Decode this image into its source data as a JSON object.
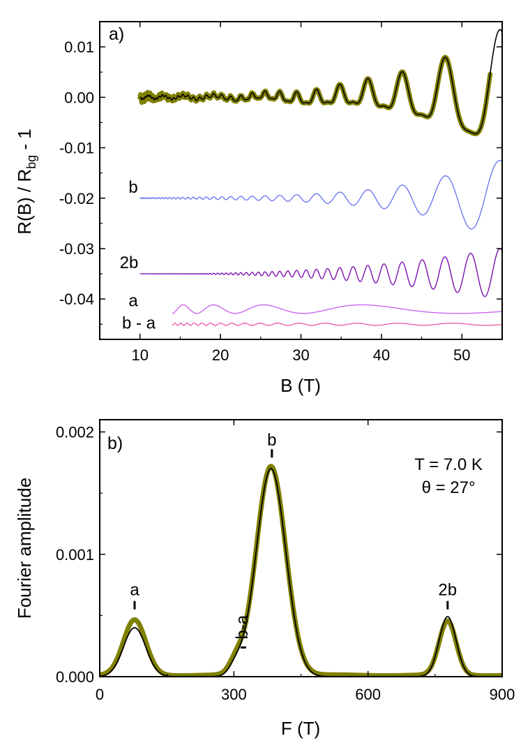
{
  "chart_data": [
    {
      "type": "line",
      "panel_label": "a)",
      "xlabel": "B (T)",
      "ylabel_main": "R(B) / R",
      "ylabel_sub": "bg",
      "ylabel_tail": " - 1",
      "xlim": [
        5,
        55
      ],
      "ylim": [
        -0.048,
        0.015
      ],
      "x_ticks": [
        10,
        20,
        30,
        40,
        50
      ],
      "x_tick_labels": [
        "10",
        "20",
        "30",
        "40",
        "50"
      ],
      "y_ticks": [
        0.01,
        0.0,
        -0.01,
        -0.02,
        -0.03,
        -0.04
      ],
      "y_tick_labels": [
        "0.01",
        "0.00",
        "-0.01",
        "-0.02",
        "-0.03",
        "-0.04"
      ],
      "series": [
        {
          "name": "data",
          "label": "",
          "color": "#808000",
          "style": "markers",
          "offset": 0.0,
          "x_range": [
            10,
            53.5
          ]
        },
        {
          "name": "fit",
          "label": "",
          "color": "#000000",
          "style": "line",
          "offset": 0.0,
          "x_range": [
            10,
            55
          ]
        },
        {
          "name": "b",
          "label": "b",
          "color": "#6b78ef",
          "style": "line",
          "offset": -0.02,
          "x_range": [
            10,
            55
          ]
        },
        {
          "name": "2b",
          "label": "2b",
          "color": "#7a10b0",
          "style": "line",
          "offset": -0.035,
          "x_range": [
            10,
            55
          ]
        },
        {
          "name": "a",
          "label": "a",
          "color": "#cc66ee",
          "style": "line",
          "offset": -0.042,
          "x_range": [
            14,
            55
          ]
        },
        {
          "name": "b-a",
          "label": "b - a",
          "color": "#ee5fa8",
          "style": "line",
          "offset": -0.045,
          "x_range": [
            14,
            55
          ]
        }
      ]
    },
    {
      "type": "line",
      "panel_label": "b)",
      "xlabel": "F (T)",
      "ylabel": "Fourier amplitude",
      "xlim": [
        0,
        900
      ],
      "ylim": [
        0,
        0.0021
      ],
      "x_ticks": [
        0,
        300,
        600,
        900
      ],
      "x_tick_labels": [
        "0",
        "300",
        "600",
        "900"
      ],
      "y_ticks": [
        0.0,
        0.001,
        0.002
      ],
      "y_tick_labels": [
        "0.000",
        "0.001",
        "0.002"
      ],
      "annotations": [
        {
          "text": "T = 7.0 K",
          "x": 780,
          "y": 0.00169
        },
        {
          "text": "θ = 27°",
          "x": 780,
          "y": 0.0015
        }
      ],
      "peak_labels": [
        {
          "text": "a",
          "x": 78,
          "y": 0.000665,
          "tick_y": 0.00055
        },
        {
          "text": "b",
          "x": 385,
          "y": 0.00189,
          "tick_y": 0.00179
        },
        {
          "text": "2b",
          "x": 778,
          "y": 0.000665,
          "tick_y": 0.00055
        },
        {
          "text": "b-a",
          "x": 318,
          "y": 0.000305,
          "tick_y": 0.00025,
          "rotated": true
        }
      ],
      "series": [
        {
          "name": "experiment",
          "color": "#808000",
          "style": "thick",
          "peaks": [
            {
              "label": "a",
              "center": 78,
              "width": 25,
              "height": 0.00045
            },
            {
              "label": "b-a",
              "center": 305,
              "width": 15,
              "height": 0.0001
            },
            {
              "label": "b",
              "center": 383,
              "width": 33,
              "height": 0.00171
            },
            {
              "label": "2b",
              "center": 778,
              "width": 19,
              "height": 0.00044
            }
          ],
          "baseline": 1.2e-05
        },
        {
          "name": "fit",
          "color": "#000000",
          "style": "thin",
          "peaks": [
            {
              "label": "a",
              "center": 78,
              "width": 25,
              "height": 0.0004
            },
            {
              "label": "b-a",
              "center": 305,
              "width": 15,
              "height": 8e-05
            },
            {
              "label": "b",
              "center": 383,
              "width": 33,
              "height": 0.0017
            },
            {
              "label": "2b",
              "center": 778,
              "width": 19,
              "height": 0.00049
            }
          ],
          "baseline": 0.0
        }
      ]
    }
  ]
}
